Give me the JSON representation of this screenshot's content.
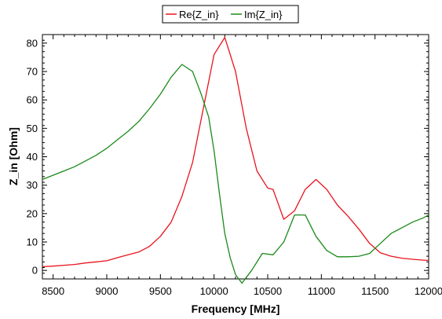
{
  "chart_data": {
    "type": "line",
    "title": "",
    "xlabel": "Frequency [MHz]",
    "ylabel": "Z_in [Ohm]",
    "xlim": [
      8400,
      12000
    ],
    "ylim": [
      -3,
      83
    ],
    "x_ticks": [
      8500,
      9000,
      9500,
      10000,
      10500,
      11000,
      11500,
      12000
    ],
    "x_tick_labels": [
      "8500",
      "9000",
      "9500",
      "10000",
      "10500",
      "11000",
      "11500",
      "12000"
    ],
    "y_ticks": [
      0,
      10,
      20,
      30,
      40,
      50,
      60,
      70,
      80
    ],
    "y_tick_labels": [
      "0",
      "10",
      "20",
      "30",
      "40",
      "50",
      "60",
      "70",
      "80"
    ],
    "grid": false,
    "legend_position": "top-center",
    "series": [
      {
        "name": "Re{Z_in}",
        "color": "#e8141e",
        "x": [
          8400,
          8500,
          8600,
          8700,
          8800,
          8900,
          9000,
          9100,
          9200,
          9300,
          9400,
          9500,
          9600,
          9700,
          9800,
          9900,
          10000,
          10100,
          10200,
          10300,
          10400,
          10500,
          10550,
          10650,
          10750,
          10850,
          10950,
          11050,
          11150,
          11250,
          11350,
          11450,
          11550,
          11650,
          11750,
          11850,
          11950,
          12000
        ],
        "y": [
          1.3,
          1.5,
          1.8,
          2.1,
          2.6,
          3.0,
          3.4,
          4.5,
          5.5,
          6.5,
          8.5,
          12.0,
          17.0,
          26.0,
          38.0,
          57.0,
          76.0,
          82.0,
          70.0,
          50.0,
          35.0,
          29.0,
          28.5,
          18.0,
          21.0,
          28.5,
          32.0,
          28.5,
          23.0,
          19.0,
          14.5,
          9.5,
          6.2,
          5.0,
          4.3,
          3.9,
          3.6,
          3.5
        ]
      },
      {
        "name": "Im{Z_in}",
        "color": "#1a8a1a",
        "x": [
          8400,
          8500,
          8600,
          8700,
          8800,
          8900,
          9000,
          9100,
          9200,
          9300,
          9400,
          9500,
          9600,
          9700,
          9800,
          9880,
          9950,
          10000,
          10050,
          10100,
          10150,
          10200,
          10260,
          10350,
          10450,
          10550,
          10650,
          10750,
          10850,
          10950,
          11050,
          11150,
          11250,
          11350,
          11450,
          11550,
          11650,
          11750,
          11850,
          11950,
          12000
        ],
        "y": [
          32.0,
          33.5,
          35.0,
          36.5,
          38.5,
          40.5,
          43.0,
          46.0,
          49.0,
          52.5,
          57.0,
          62.0,
          68.0,
          72.5,
          70.0,
          62.0,
          54.0,
          42.0,
          27.0,
          13.0,
          4.5,
          -1.5,
          -4.5,
          0.0,
          6.0,
          5.5,
          10.0,
          19.5,
          19.5,
          12.0,
          7.0,
          4.8,
          4.8,
          5.0,
          6.0,
          9.5,
          13.0,
          15.0,
          17.0,
          18.5,
          19.5
        ]
      }
    ]
  }
}
